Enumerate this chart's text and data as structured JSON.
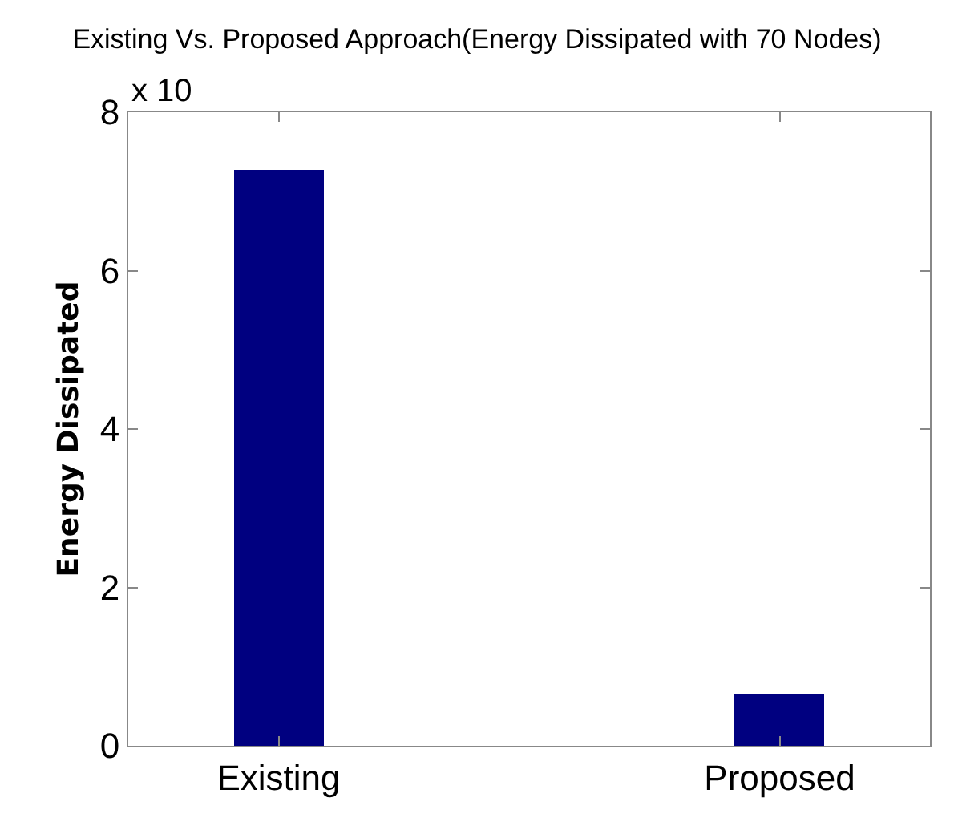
{
  "chart_data": {
    "type": "bar",
    "title": "Existing Vs. Proposed Approach(Energy Dissipated with 70 Nodes)",
    "ylabel": "Energy Dissipated",
    "categories": [
      "Existing",
      "Proposed"
    ],
    "values": [
      7.28,
      0.64
    ],
    "color": "#000080",
    "ylim": [
      0,
      8
    ],
    "yticks": [
      0,
      2,
      4,
      6,
      8
    ],
    "annotations": [
      "x 10"
    ]
  }
}
